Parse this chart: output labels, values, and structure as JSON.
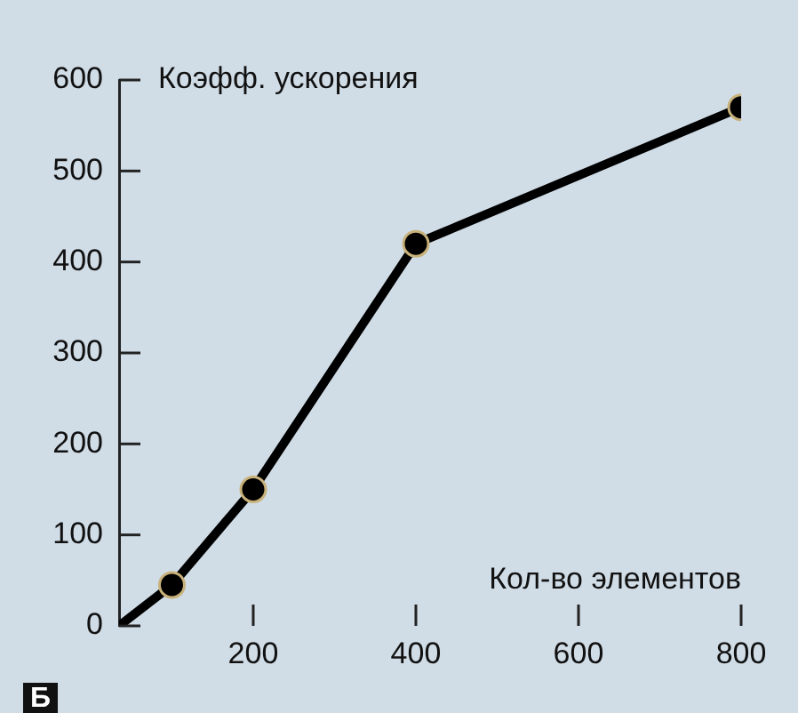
{
  "chart_data": {
    "type": "line",
    "xlabel": "Кол-во элементов",
    "ylabel": "Коэфф. ускорения",
    "x": [
      35,
      100,
      200,
      400,
      800
    ],
    "series": [
      {
        "color": "#000000",
        "values": [
          0,
          45,
          150,
          420,
          570
        ]
      }
    ],
    "xlim": [
      35,
      800
    ],
    "xticks": [
      200,
      400,
      600,
      800
    ],
    "ylim": [
      0,
      600
    ],
    "yticks": [
      0,
      100,
      200,
      300,
      400,
      500,
      600
    ],
    "grid": false,
    "legend": false,
    "marker": "circle",
    "line_style": "solid",
    "annotations": [
      "Б"
    ]
  }
}
